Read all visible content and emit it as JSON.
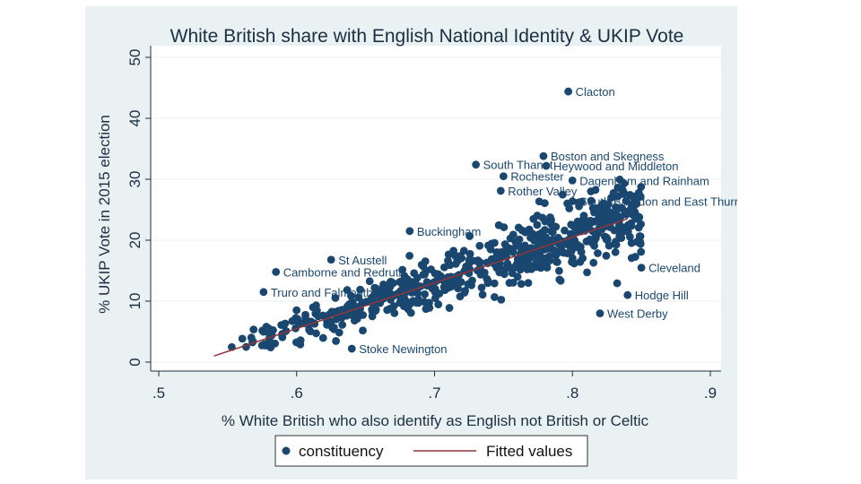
{
  "chart_data": {
    "type": "scatter",
    "title": "White British share with English National Identity & UKIP Vote",
    "xlabel": "% White British who also identify as English not British or Celtic",
    "ylabel": "% UKIP Vote in 2015 election",
    "xlim": [
      0.5,
      0.9
    ],
    "ylim": [
      0,
      50
    ],
    "x_ticks": [
      ".5",
      ".6",
      ".7",
      ".8",
      ".9"
    ],
    "y_ticks": [
      "0",
      "10",
      "20",
      "30",
      "40",
      "50"
    ],
    "grid": "horizontal",
    "legend": {
      "placement": "bottom",
      "entries": [
        "constituency",
        "Fitted values"
      ]
    },
    "series": [
      {
        "name": "constituency",
        "kind": "scatter",
        "color": "#1a476f"
      },
      {
        "name": "Fitted values",
        "kind": "line",
        "color": "#90353b",
        "x": [
          0.54,
          0.84
        ],
        "y": [
          1.0,
          23.5
        ]
      }
    ],
    "labeled_points": [
      {
        "label": "Clacton",
        "x": 0.797,
        "y": 44.4
      },
      {
        "label": "Boston and Skegness",
        "x": 0.779,
        "y": 33.8
      },
      {
        "label": "South Thanet",
        "x": 0.73,
        "y": 32.4
      },
      {
        "label": "Heywood and Middleton",
        "x": 0.781,
        "y": 32.2
      },
      {
        "label": "Rochester",
        "x": 0.75,
        "y": 30.5
      },
      {
        "label": "Rother Valley",
        "x": 0.748,
        "y": 28.1
      },
      {
        "label": "Dagenham and Rainham",
        "x": 0.8,
        "y": 29.8
      },
      {
        "label": "South Basildon and East Thurrock",
        "x": 0.8,
        "y": 26.4
      },
      {
        "label": "Buckingham",
        "x": 0.682,
        "y": 21.5
      },
      {
        "label": "St Austell",
        "x": 0.625,
        "y": 16.8
      },
      {
        "label": "Camborne and Redruth",
        "x": 0.585,
        "y": 14.8
      },
      {
        "label": "Truro and Falmouth",
        "x": 0.576,
        "y": 11.5
      },
      {
        "label": "Stoke Newington",
        "x": 0.64,
        "y": 2.2
      },
      {
        "label": "Hodge Hill",
        "x": 0.84,
        "y": 11.0
      },
      {
        "label": "West Derby",
        "x": 0.82,
        "y": 8.0
      },
      {
        "label": "Cleveland",
        "x": 0.85,
        "y": 15.5
      }
    ]
  },
  "colors": {
    "panel": "#eaf1f3",
    "plot_bg": "#ffffff",
    "marker": "#1a476f",
    "fit_line": "#90353b",
    "grid": "#eaf2f3"
  }
}
